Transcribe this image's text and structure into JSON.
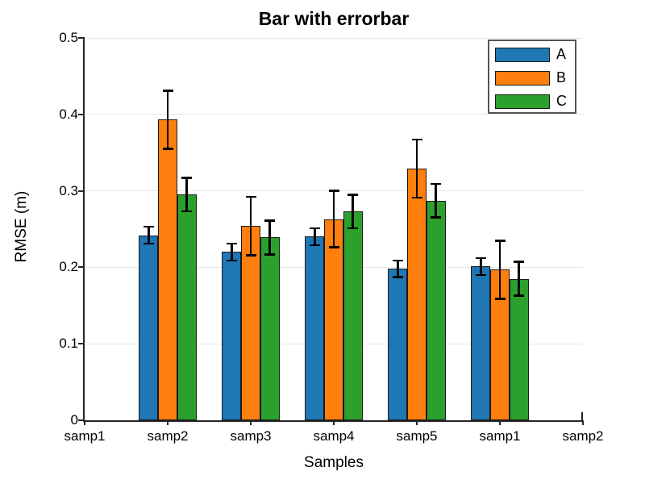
{
  "chart_data": {
    "type": "bar",
    "title": "Bar with errorbar",
    "xlabel": "Samples",
    "ylabel": "RMSE (m)",
    "x_tick_labels": [
      "samp1",
      "samp2",
      "samp3",
      "samp4",
      "samp5",
      "samp1",
      "samp2"
    ],
    "data_tick_indices": [
      1,
      2,
      3,
      4,
      5
    ],
    "categories_with_data": [
      "samp2",
      "samp3",
      "samp4",
      "samp5",
      "samp1"
    ],
    "y_tick_labels": [
      "0",
      "0.1",
      "0.2",
      "0.3",
      "0.4",
      "0.5"
    ],
    "y_ticks": [
      0,
      0.1,
      0.2,
      0.3,
      0.4,
      0.5
    ],
    "ylim": [
      0,
      0.5
    ],
    "grid": "horizontal-only",
    "legend_position": "top-right",
    "series": [
      {
        "name": "A",
        "color": "#1f77b4",
        "values": [
          0.242,
          0.22,
          0.24,
          0.198,
          0.201
        ],
        "errors": [
          0.011,
          0.011,
          0.011,
          0.011,
          0.011
        ]
      },
      {
        "name": "B",
        "color": "#ff7f0e",
        "values": [
          0.393,
          0.254,
          0.263,
          0.329,
          0.197
        ],
        "errors": [
          0.038,
          0.038,
          0.037,
          0.038,
          0.038
        ]
      },
      {
        "name": "C",
        "color": "#2ca02c",
        "values": [
          0.295,
          0.239,
          0.273,
          0.287,
          0.185
        ],
        "errors": [
          0.022,
          0.022,
          0.022,
          0.022,
          0.022
        ]
      }
    ],
    "style_colors": {
      "bar_edge": "#1a1a1a",
      "grid": "#e7e7e7",
      "axis": "#262626",
      "errorbar": "#000000",
      "legend_border": "#555555",
      "text": "#000000"
    }
  }
}
